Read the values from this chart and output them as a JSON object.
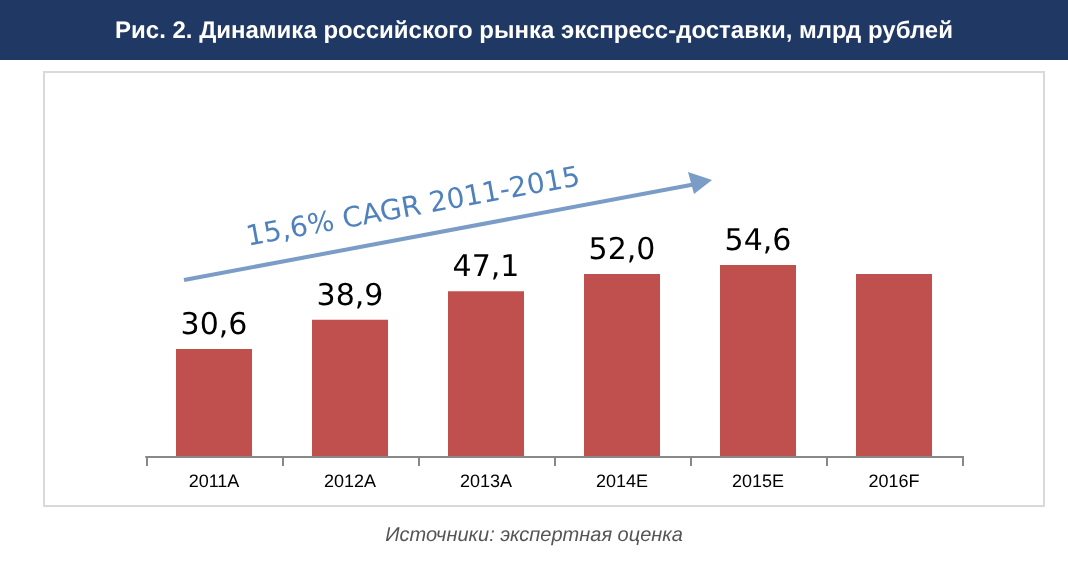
{
  "chart_data": {
    "type": "bar",
    "title": "Рис. 2. Динамика российского рынка экспресс-доставки, млрд рублей",
    "categories": [
      "2011A",
      "2012A",
      "2013A",
      "2014E",
      "2015E",
      "2016F"
    ],
    "values": [
      30.6,
      38.9,
      47.1,
      52.0,
      54.6,
      52
    ],
    "value_labels": [
      "30,6",
      "38,9",
      "47,1",
      "52,0",
      "54,6",
      null
    ],
    "color": "#c0504d",
    "annotations": [
      "15,6% CAGR 2011-2015",
      "Источники: экспертная оценка"
    ]
  }
}
